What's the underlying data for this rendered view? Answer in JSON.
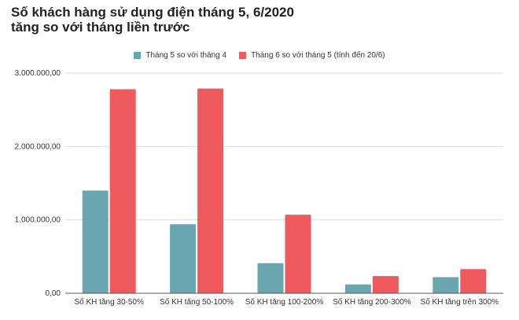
{
  "chart_data": {
    "type": "bar",
    "title_lines": [
      "Số khách hàng sử dụng điện tháng 5, 6/2020",
      "tăng so với tháng liền trước"
    ],
    "categories": [
      "Số KH tăng 30-50%",
      "Số KH tăng 50-100%",
      "Số KH tăng 100-200%",
      "Số KH tăng 200-300%",
      "Số KH tăng trên 300%"
    ],
    "series": [
      {
        "name": "Tháng 5 so với tháng 4",
        "color": "#6aa6b0",
        "values": [
          1400000,
          940000,
          410000,
          120000,
          220000
        ]
      },
      {
        "name": "Tháng 6 so với tháng 5 (tính đến 20/6)",
        "color": "#ef5a5f",
        "values": [
          2780000,
          2790000,
          1070000,
          235000,
          330000
        ]
      }
    ],
    "ylim": [
      0,
      3000000
    ],
    "yticks": [
      0,
      1000000,
      2000000,
      3000000
    ],
    "ytick_labels": [
      "0,00",
      "1.000.000,00",
      "2.000.000,00",
      "3.000.000,00"
    ],
    "grid": true,
    "legend": "top-center"
  }
}
